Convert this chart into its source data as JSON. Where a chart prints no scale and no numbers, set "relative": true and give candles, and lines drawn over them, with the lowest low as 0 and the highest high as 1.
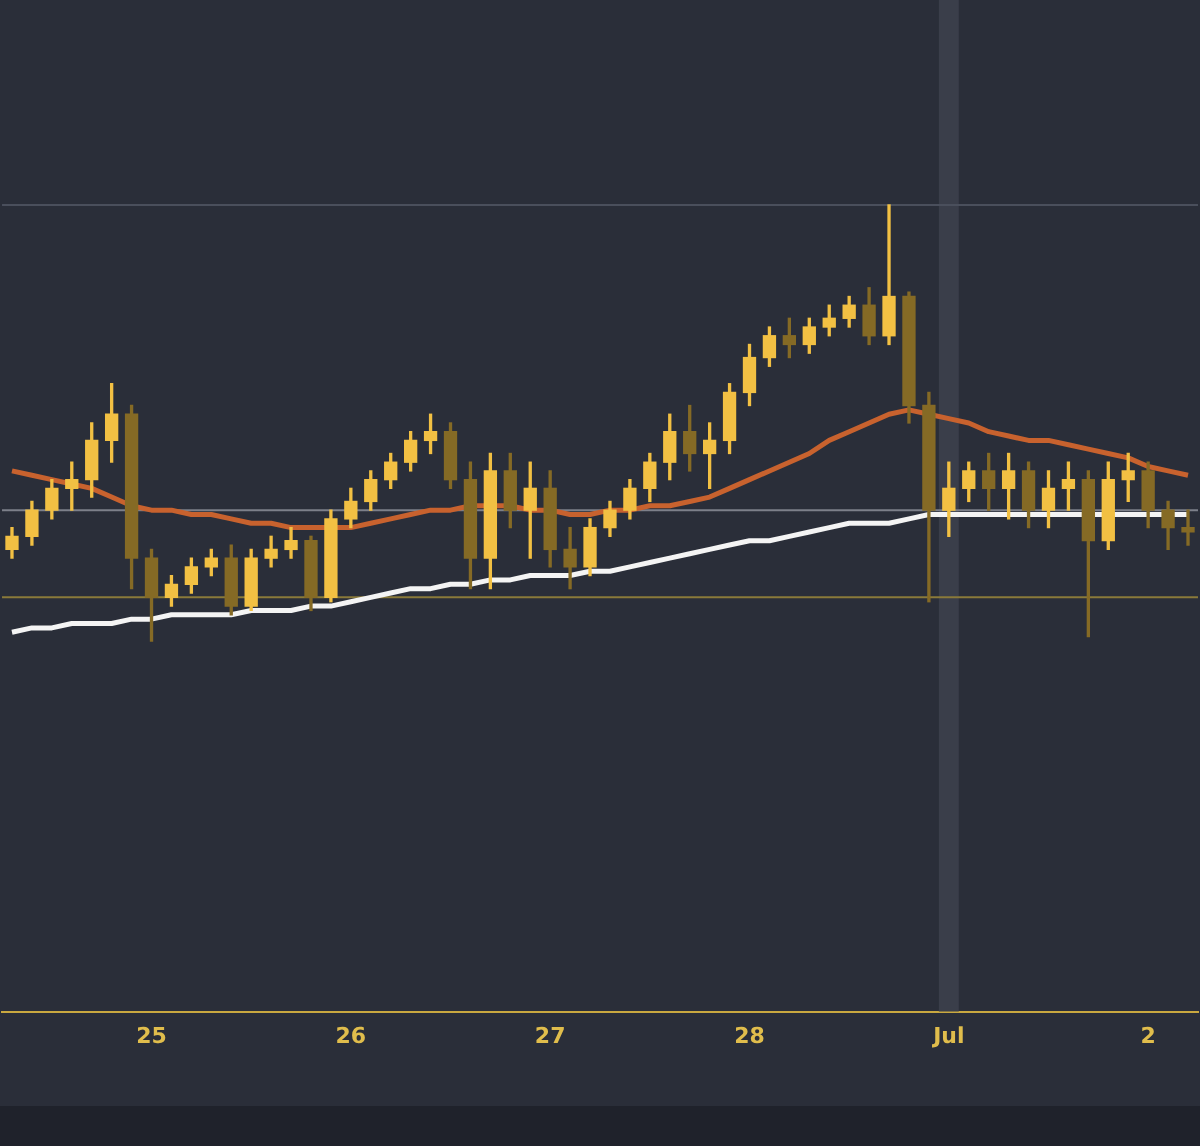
{
  "chart_data": {
    "type": "candlestick",
    "relative": true,
    "colors": [
      "#f2c043",
      "#f2c043",
      "#f2c043",
      "#f2c043",
      "#f2c043",
      "#f2c043",
      "#856a25",
      "#856a25",
      "#f2c043",
      "#f2c043",
      "#f2c043",
      "#856a25",
      "#f2c043",
      "#f2c043",
      "#f2c043",
      "#856a25",
      "#f2c043",
      "#f2c043",
      "#f2c043",
      "#f2c043",
      "#f2c043",
      "#f2c043",
      "#856a25",
      "#856a25",
      "#f2c043",
      "#856a25",
      "#f2c043",
      "#856a25",
      "#856a25",
      "#f2c043",
      "#f2c043",
      "#f2c043",
      "#f2c043",
      "#f2c043",
      "#856a25",
      "#f2c043",
      "#f2c043",
      "#f2c043",
      "#f2c043",
      "#856a25",
      "#f2c043",
      "#f2c043",
      "#f2c043",
      "#856a25",
      "#f2c043",
      "#856a25",
      "#856a25",
      "#f2c043",
      "#f2c043",
      "#856a25",
      "#f2c043",
      "#856a25",
      "#f2c043",
      "#f2c043",
      "#856a25",
      "#f2c043",
      "#f2c043",
      "#856a25",
      "#856a25",
      "#856a25"
    ],
    "categories": [
      null,
      null,
      null,
      null,
      null,
      null,
      null,
      "25",
      null,
      null,
      null,
      null,
      null,
      null,
      null,
      null,
      null,
      "26",
      null,
      null,
      null,
      null,
      null,
      null,
      null,
      null,
      null,
      "27",
      null,
      null,
      null,
      null,
      null,
      null,
      null,
      null,
      null,
      "28",
      null,
      null,
      null,
      null,
      null,
      null,
      null,
      null,
      null,
      "Jul",
      null,
      null,
      null,
      null,
      null,
      null,
      null,
      null,
      null,
      "2",
      null,
      null
    ],
    "ohlc": [
      [
        0.21,
        0.26,
        0.19,
        0.24
      ],
      [
        0.24,
        0.32,
        0.22,
        0.3
      ],
      [
        0.3,
        0.37,
        0.28,
        0.35
      ],
      [
        0.35,
        0.41,
        0.3,
        0.37
      ],
      [
        0.37,
        0.5,
        0.33,
        0.46
      ],
      [
        0.46,
        0.59,
        0.41,
        0.52
      ],
      [
        0.52,
        0.54,
        0.12,
        0.19
      ],
      [
        0.19,
        0.21,
        0,
        0.1
      ],
      [
        0.1,
        0.15,
        0.08,
        0.13
      ],
      [
        0.13,
        0.19,
        0.11,
        0.17
      ],
      [
        0.17,
        0.21,
        0.15,
        0.19
      ],
      [
        0.19,
        0.22,
        0.06,
        0.08
      ],
      [
        0.08,
        0.21,
        0.07,
        0.19
      ],
      [
        0.19,
        0.24,
        0.17,
        0.21
      ],
      [
        0.21,
        0.26,
        0.19,
        0.23
      ],
      [
        0.23,
        0.24,
        0.07,
        0.1
      ],
      [
        0.1,
        0.3,
        0.09,
        0.28
      ],
      [
        0.28,
        0.35,
        0.26,
        0.32
      ],
      [
        0.32,
        0.39,
        0.3,
        0.37
      ],
      [
        0.37,
        0.43,
        0.35,
        0.41
      ],
      [
        0.41,
        0.48,
        0.39,
        0.46
      ],
      [
        0.46,
        0.52,
        0.43,
        0.48
      ],
      [
        0.48,
        0.5,
        0.35,
        0.37
      ],
      [
        0.37,
        0.41,
        0.12,
        0.19
      ],
      [
        0.19,
        0.43,
        0.12,
        0.39
      ],
      [
        0.39,
        0.43,
        0.26,
        0.3
      ],
      [
        0.3,
        0.41,
        0.19,
        0.35
      ],
      [
        0.35,
        0.39,
        0.17,
        0.21
      ],
      [
        0.21,
        0.26,
        0.12,
        0.17
      ],
      [
        0.17,
        0.28,
        0.15,
        0.26
      ],
      [
        0.26,
        0.32,
        0.24,
        0.3
      ],
      [
        0.3,
        0.37,
        0.28,
        0.35
      ],
      [
        0.35,
        0.43,
        0.32,
        0.41
      ],
      [
        0.41,
        0.52,
        0.37,
        0.48
      ],
      [
        0.48,
        0.54,
        0.39,
        0.43
      ],
      [
        0.43,
        0.5,
        0.35,
        0.46
      ],
      [
        0.46,
        0.59,
        0.43,
        0.57
      ],
      [
        0.57,
        0.68,
        0.54,
        0.65
      ],
      [
        0.65,
        0.72,
        0.63,
        0.7
      ],
      [
        0.7,
        0.74,
        0.65,
        0.68
      ],
      [
        0.68,
        0.74,
        0.66,
        0.72
      ],
      [
        0.72,
        0.77,
        0.7,
        0.74
      ],
      [
        0.74,
        0.79,
        0.72,
        0.77
      ],
      [
        0.77,
        0.81,
        0.68,
        0.7
      ],
      [
        0.7,
        1.0,
        0.68,
        0.79
      ],
      [
        0.79,
        0.8,
        0.5,
        0.54
      ],
      [
        0.54,
        0.57,
        0.09,
        0.3
      ],
      [
        0.3,
        0.41,
        0.24,
        0.35
      ],
      [
        0.35,
        0.41,
        0.32,
        0.39
      ],
      [
        0.39,
        0.43,
        0.3,
        0.35
      ],
      [
        0.35,
        0.43,
        0.28,
        0.39
      ],
      [
        0.39,
        0.41,
        0.26,
        0.3
      ],
      [
        0.3,
        0.39,
        0.26,
        0.35
      ],
      [
        0.35,
        0.41,
        0.3,
        0.37
      ],
      [
        0.37,
        0.39,
        0.01,
        0.23
      ],
      [
        0.23,
        0.41,
        0.21,
        0.37
      ],
      [
        0.37,
        0.43,
        0.32,
        0.39
      ],
      [
        0.39,
        0.41,
        0.26,
        0.3
      ],
      [
        0.3,
        0.32,
        0.21,
        0.26
      ],
      [
        0.26,
        0.3,
        0.22,
        0.25
      ]
    ],
    "series": [
      {
        "type": "line",
        "color": "#c8622e",
        "values": [
          0.39,
          0.38,
          0.37,
          0.36,
          0.35,
          0.33,
          0.31,
          0.3,
          0.3,
          0.29,
          0.29,
          0.28,
          0.27,
          0.27,
          0.26,
          0.26,
          0.26,
          0.26,
          0.27,
          0.28,
          0.29,
          0.3,
          0.3,
          0.31,
          0.31,
          0.31,
          0.3,
          0.3,
          0.29,
          0.29,
          0.3,
          0.3,
          0.31,
          0.31,
          0.32,
          0.33,
          0.35,
          0.37,
          0.39,
          0.41,
          0.43,
          0.46,
          0.48,
          0.5,
          0.52,
          0.53,
          0.52,
          0.51,
          0.5,
          0.48,
          0.47,
          0.46,
          0.46,
          0.45,
          0.44,
          0.43,
          0.42,
          0.4,
          0.39,
          0.38
        ]
      },
      {
        "type": "line",
        "color": "#f4f4f4",
        "values": [
          0.02,
          0.03,
          0.03,
          0.04,
          0.04,
          0.04,
          0.05,
          0.05,
          0.06,
          0.06,
          0.06,
          0.06,
          0.07,
          0.07,
          0.07,
          0.08,
          0.08,
          0.09,
          0.1,
          0.11,
          0.12,
          0.12,
          0.13,
          0.13,
          0.14,
          0.14,
          0.15,
          0.15,
          0.15,
          0.16,
          0.16,
          0.17,
          0.18,
          0.19,
          0.2,
          0.21,
          0.22,
          0.23,
          0.23,
          0.24,
          0.25,
          0.26,
          0.27,
          0.27,
          0.27,
          0.28,
          0.29,
          0.29,
          0.29,
          0.29,
          0.29,
          0.29,
          0.29,
          0.29,
          0.29,
          0.29,
          0.29,
          0.29,
          0.29,
          0.29
        ]
      }
    ],
    "ref_lines": [
      {
        "axis": "y",
        "value": 0.3,
        "color": "#7d808a"
      },
      {
        "axis": "y",
        "value": 0.1,
        "color": "#8a7a3a"
      },
      {
        "axis": "y",
        "value": 1.0,
        "color": "#4a4f5c"
      }
    ],
    "bands": [
      {
        "axis": "x",
        "from": "Jul",
        "to": "Jul",
        "color": "#3a3e4a"
      }
    ],
    "grid": false,
    "legend": false,
    "tick_labels": "x",
    "line_style": "solid",
    "marker": "none"
  }
}
